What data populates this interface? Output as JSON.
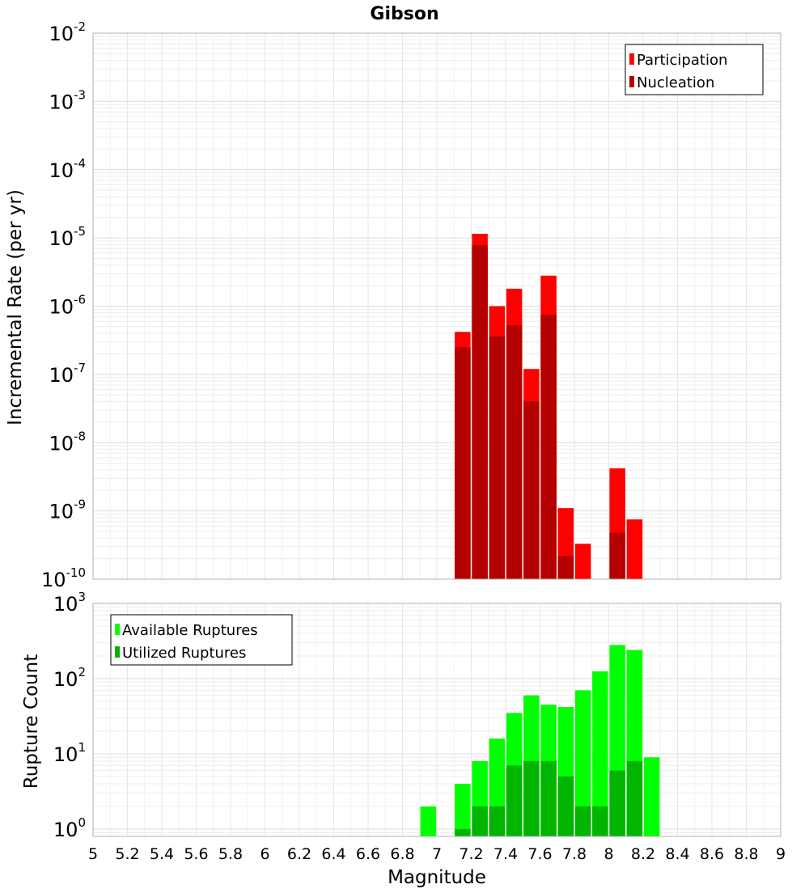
{
  "chart_data": [
    {
      "type": "bar",
      "title": "Gibson",
      "xlabel": "",
      "ylabel": "Incremental Rate (per yr)",
      "yscale": "log",
      "ylim": [
        1e-10,
        0.01
      ],
      "xlim": [
        5,
        9
      ],
      "y_tick_labels": [
        "10^-10",
        "10^-9",
        "10^-8",
        "10^-7",
        "10^-6",
        "10^-5",
        "10^-4",
        "10^-3",
        "10^-2"
      ],
      "legend": {
        "position": "top-right",
        "entries": [
          {
            "name": "Participation",
            "color": "#ff0000"
          },
          {
            "name": "Nucleation",
            "color": "#b40000"
          }
        ]
      },
      "x": [
        7.15,
        7.25,
        7.35,
        7.45,
        7.55,
        7.65,
        7.75,
        7.85,
        8.05,
        8.15
      ],
      "series": [
        {
          "name": "Participation",
          "color": "#ff0000",
          "values": [
            4.2e-07,
            1.15e-05,
            1e-06,
            1.8e-06,
            1.2e-07,
            2.8e-06,
            1.1e-09,
            3.3e-10,
            4.2e-09,
            7.5e-10
          ]
        },
        {
          "name": "Nucleation",
          "color": "#b40000",
          "values": [
            2.5e-07,
            7.8e-06,
            3.6e-07,
            5.2e-07,
            4e-08,
            7.5e-07,
            2.2e-10,
            null,
            4.8e-10,
            null
          ]
        }
      ]
    },
    {
      "type": "bar",
      "title": "",
      "xlabel": "Magnitude",
      "ylabel": "Rupture Count",
      "yscale": "log",
      "ylim": [
        0.8,
        1000
      ],
      "xlim": [
        5,
        9
      ],
      "x_tick_labels": [
        "5",
        "5.2",
        "5.4",
        "5.6",
        "5.8",
        "6",
        "6.2",
        "6.4",
        "6.6",
        "6.8",
        "7",
        "7.2",
        "7.4",
        "7.6",
        "7.8",
        "8",
        "8.2",
        "8.4",
        "8.6",
        "8.8",
        "9"
      ],
      "y_tick_labels": [
        "10^0",
        "10^1",
        "10^2",
        "10^3"
      ],
      "legend": {
        "position": "top-left",
        "entries": [
          {
            "name": "Available Ruptures",
            "color": "#00ff00"
          },
          {
            "name": "Utilized Ruptures",
            "color": "#00b400"
          }
        ]
      },
      "x": [
        6.95,
        7.15,
        7.25,
        7.35,
        7.45,
        7.55,
        7.65,
        7.75,
        7.85,
        7.95,
        8.05,
        8.15,
        8.25
      ],
      "series": [
        {
          "name": "Available Ruptures",
          "color": "#00ff00",
          "values": [
            2,
            4,
            8,
            16,
            35,
            60,
            45,
            42,
            70,
            125,
            280,
            240,
            9
          ]
        },
        {
          "name": "Utilized Ruptures",
          "color": "#00b400",
          "values": [
            null,
            1,
            2,
            2,
            7,
            8,
            8,
            5,
            2,
            2,
            6,
            8,
            null
          ]
        }
      ]
    }
  ]
}
